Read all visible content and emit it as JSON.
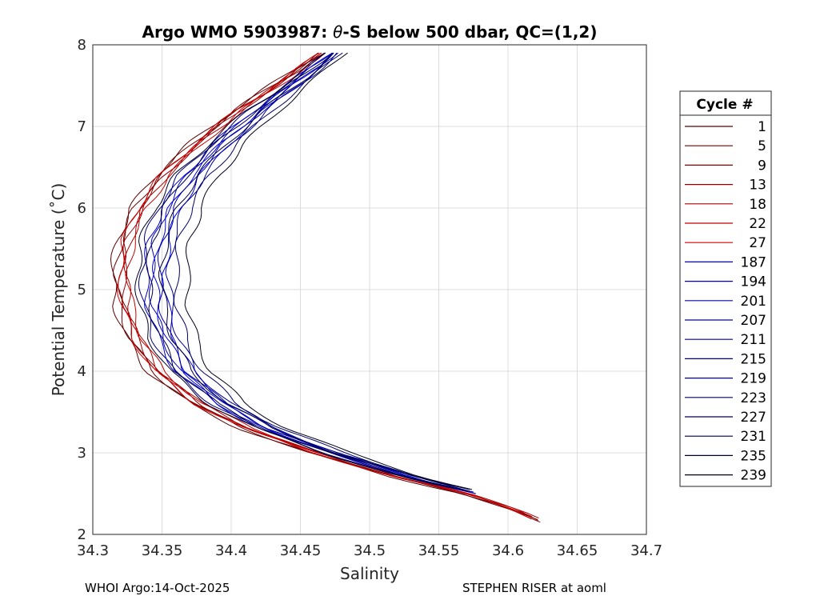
{
  "chart_data": {
    "type": "line",
    "title_prefix": "Argo WMO 5903987: ",
    "title_theta": "θ",
    "title_suffix": "-S below 500 dbar,  QC=(1,2)",
    "xlabel": "Salinity",
    "ylabel": "Potential Temperature (˚C)",
    "xlim": [
      34.3,
      34.7
    ],
    "ylim": [
      2,
      8
    ],
    "xticks": [
      "34.3",
      "34.35",
      "34.4",
      "34.45",
      "34.5",
      "34.55",
      "34.6",
      "34.65",
      "34.7"
    ],
    "yticks": [
      "2",
      "3",
      "4",
      "5",
      "6",
      "7",
      "8"
    ],
    "grid": true,
    "legend": {
      "title": "Cycle #",
      "placement": "outside-right",
      "entries": [
        {
          "label": "1",
          "color": "#5a0000"
        },
        {
          "label": "5",
          "color": "#6e0000"
        },
        {
          "label": "9",
          "color": "#820000"
        },
        {
          "label": "13",
          "color": "#980000"
        },
        {
          "label": "18",
          "color": "#b00000"
        },
        {
          "label": "22",
          "color": "#c40000"
        },
        {
          "label": "27",
          "color": "#d80000"
        },
        {
          "label": "187",
          "color": "#0000c8"
        },
        {
          "label": "194",
          "color": "#0000d4"
        },
        {
          "label": "201",
          "color": "#0000e0"
        },
        {
          "label": "207",
          "color": "#0000c0"
        },
        {
          "label": "211",
          "color": "#0000a8"
        },
        {
          "label": "215",
          "color": "#000094"
        },
        {
          "label": "219",
          "color": "#00007e"
        },
        {
          "label": "223",
          "color": "#000068"
        },
        {
          "label": "227",
          "color": "#000052"
        },
        {
          "label": "231",
          "color": "#00003c"
        },
        {
          "label": "235",
          "color": "#000028"
        },
        {
          "label": "239",
          "color": "#000018"
        }
      ]
    },
    "base_curve": {
      "theta": [
        2.15,
        2.3,
        2.5,
        2.7,
        3.0,
        3.3,
        3.6,
        4.0,
        4.4,
        4.8,
        5.2,
        5.6,
        6.0,
        6.4,
        6.8,
        7.2,
        7.6,
        7.9
      ],
      "salinity": [
        34.625,
        34.605,
        34.57,
        34.52,
        34.46,
        34.41,
        34.375,
        34.345,
        34.33,
        34.322,
        34.32,
        34.323,
        34.333,
        34.35,
        34.375,
        34.405,
        34.44,
        34.465
      ]
    },
    "series": [
      {
        "name": "1",
        "ds": -0.006,
        "t0": 2.2
      },
      {
        "name": "5",
        "ds": -0.003,
        "t0": 2.18
      },
      {
        "name": "9",
        "ds": 0.0,
        "t0": 2.15
      },
      {
        "name": "13",
        "ds": 0.002,
        "t0": 2.17
      },
      {
        "name": "18",
        "ds": 0.004,
        "t0": 2.2
      },
      {
        "name": "22",
        "ds": 0.006,
        "t0": 2.22
      },
      {
        "name": "27",
        "ds": -0.001,
        "t0": 2.19
      },
      {
        "name": "187",
        "ds": 0.018,
        "t0": 2.5
      },
      {
        "name": "194",
        "ds": 0.025,
        "t0": 2.55
      },
      {
        "name": "201",
        "ds": 0.032,
        "t0": 2.6
      },
      {
        "name": "207",
        "ds": 0.022,
        "t0": 2.52
      },
      {
        "name": "211",
        "ds": 0.028,
        "t0": 2.58
      },
      {
        "name": "215",
        "ds": 0.035,
        "t0": 2.62
      },
      {
        "name": "219",
        "ds": 0.015,
        "t0": 2.5
      },
      {
        "name": "223",
        "ds": 0.04,
        "t0": 2.55
      },
      {
        "name": "227",
        "ds": 0.02,
        "t0": 2.6
      },
      {
        "name": "231",
        "ds": 0.03,
        "t0": 2.53
      },
      {
        "name": "235",
        "ds": 0.012,
        "t0": 2.56
      },
      {
        "name": "239",
        "ds": 0.048,
        "t0": 2.55
      }
    ]
  },
  "footer": {
    "left": "WHOI Argo:14-Oct-2025",
    "right": "STEPHEN RISER at aoml"
  }
}
